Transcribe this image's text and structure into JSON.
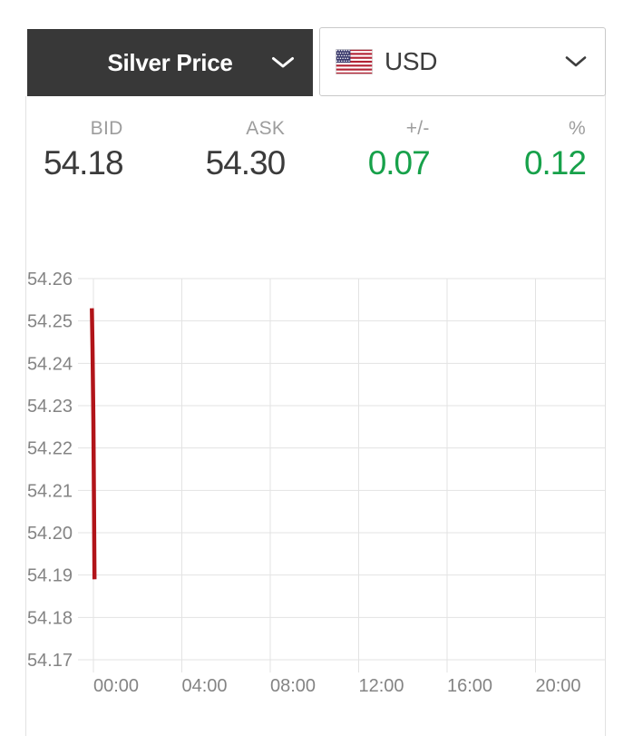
{
  "header": {
    "metal_select": {
      "label": "Silver Price",
      "icon": "chevron-down-icon"
    },
    "currency_select": {
      "label": "USD",
      "flag_icon": "us-flag-icon",
      "icon": "chevron-down-icon"
    }
  },
  "stats": {
    "columns": [
      {
        "label": "BID",
        "value": "54.18",
        "color": "#3b3b3b"
      },
      {
        "label": "ASK",
        "value": "54.30",
        "color": "#3b3b3b"
      },
      {
        "label": "+/-",
        "value": "0.07",
        "color": "#17a14a"
      },
      {
        "label": "%",
        "value": "0.12",
        "color": "#17a14a"
      }
    ]
  },
  "chart_data": {
    "type": "line",
    "xlabel": "",
    "ylabel": "",
    "grid": true,
    "ylim": [
      54.17,
      54.26
    ],
    "xlim_hours": [
      -0.73,
      23.14
    ],
    "y_ticks": [
      "54.26",
      "54.25",
      "54.24",
      "54.23",
      "54.22",
      "54.21",
      "54.20",
      "54.19",
      "54.18",
      "54.17"
    ],
    "x_ticks": [
      {
        "label": "00:00",
        "hour": 0
      },
      {
        "label": "04:00",
        "hour": 4
      },
      {
        "label": "08:00",
        "hour": 8
      },
      {
        "label": "12:00",
        "hour": 12
      },
      {
        "label": "16:00",
        "hour": 16
      },
      {
        "label": "20:00",
        "hour": 20
      }
    ],
    "series": [
      {
        "name": "silver-price-usd-per-oz",
        "color": "#b11419",
        "stroke_width": 4.5,
        "points": [
          {
            "hour": -0.07,
            "price": 54.253
          },
          {
            "hour": -0.04,
            "price": 54.244
          },
          {
            "hour": 0.0,
            "price": 54.226
          },
          {
            "hour": 0.03,
            "price": 54.205
          },
          {
            "hour": 0.05,
            "price": 54.189
          }
        ]
      }
    ]
  },
  "colors": {
    "header_bg": "#383838",
    "header_text": "#ffffff",
    "positive": "#17a14a",
    "value_text": "#3b3b3b",
    "stat_label_text": "#9d9d9d",
    "grid": "#e3e3e3",
    "axis_text": "#848484",
    "border": "#e2e2e2",
    "line": "#b11419",
    "flag_red": "#b22234",
    "flag_blue": "#3c3b6e"
  }
}
